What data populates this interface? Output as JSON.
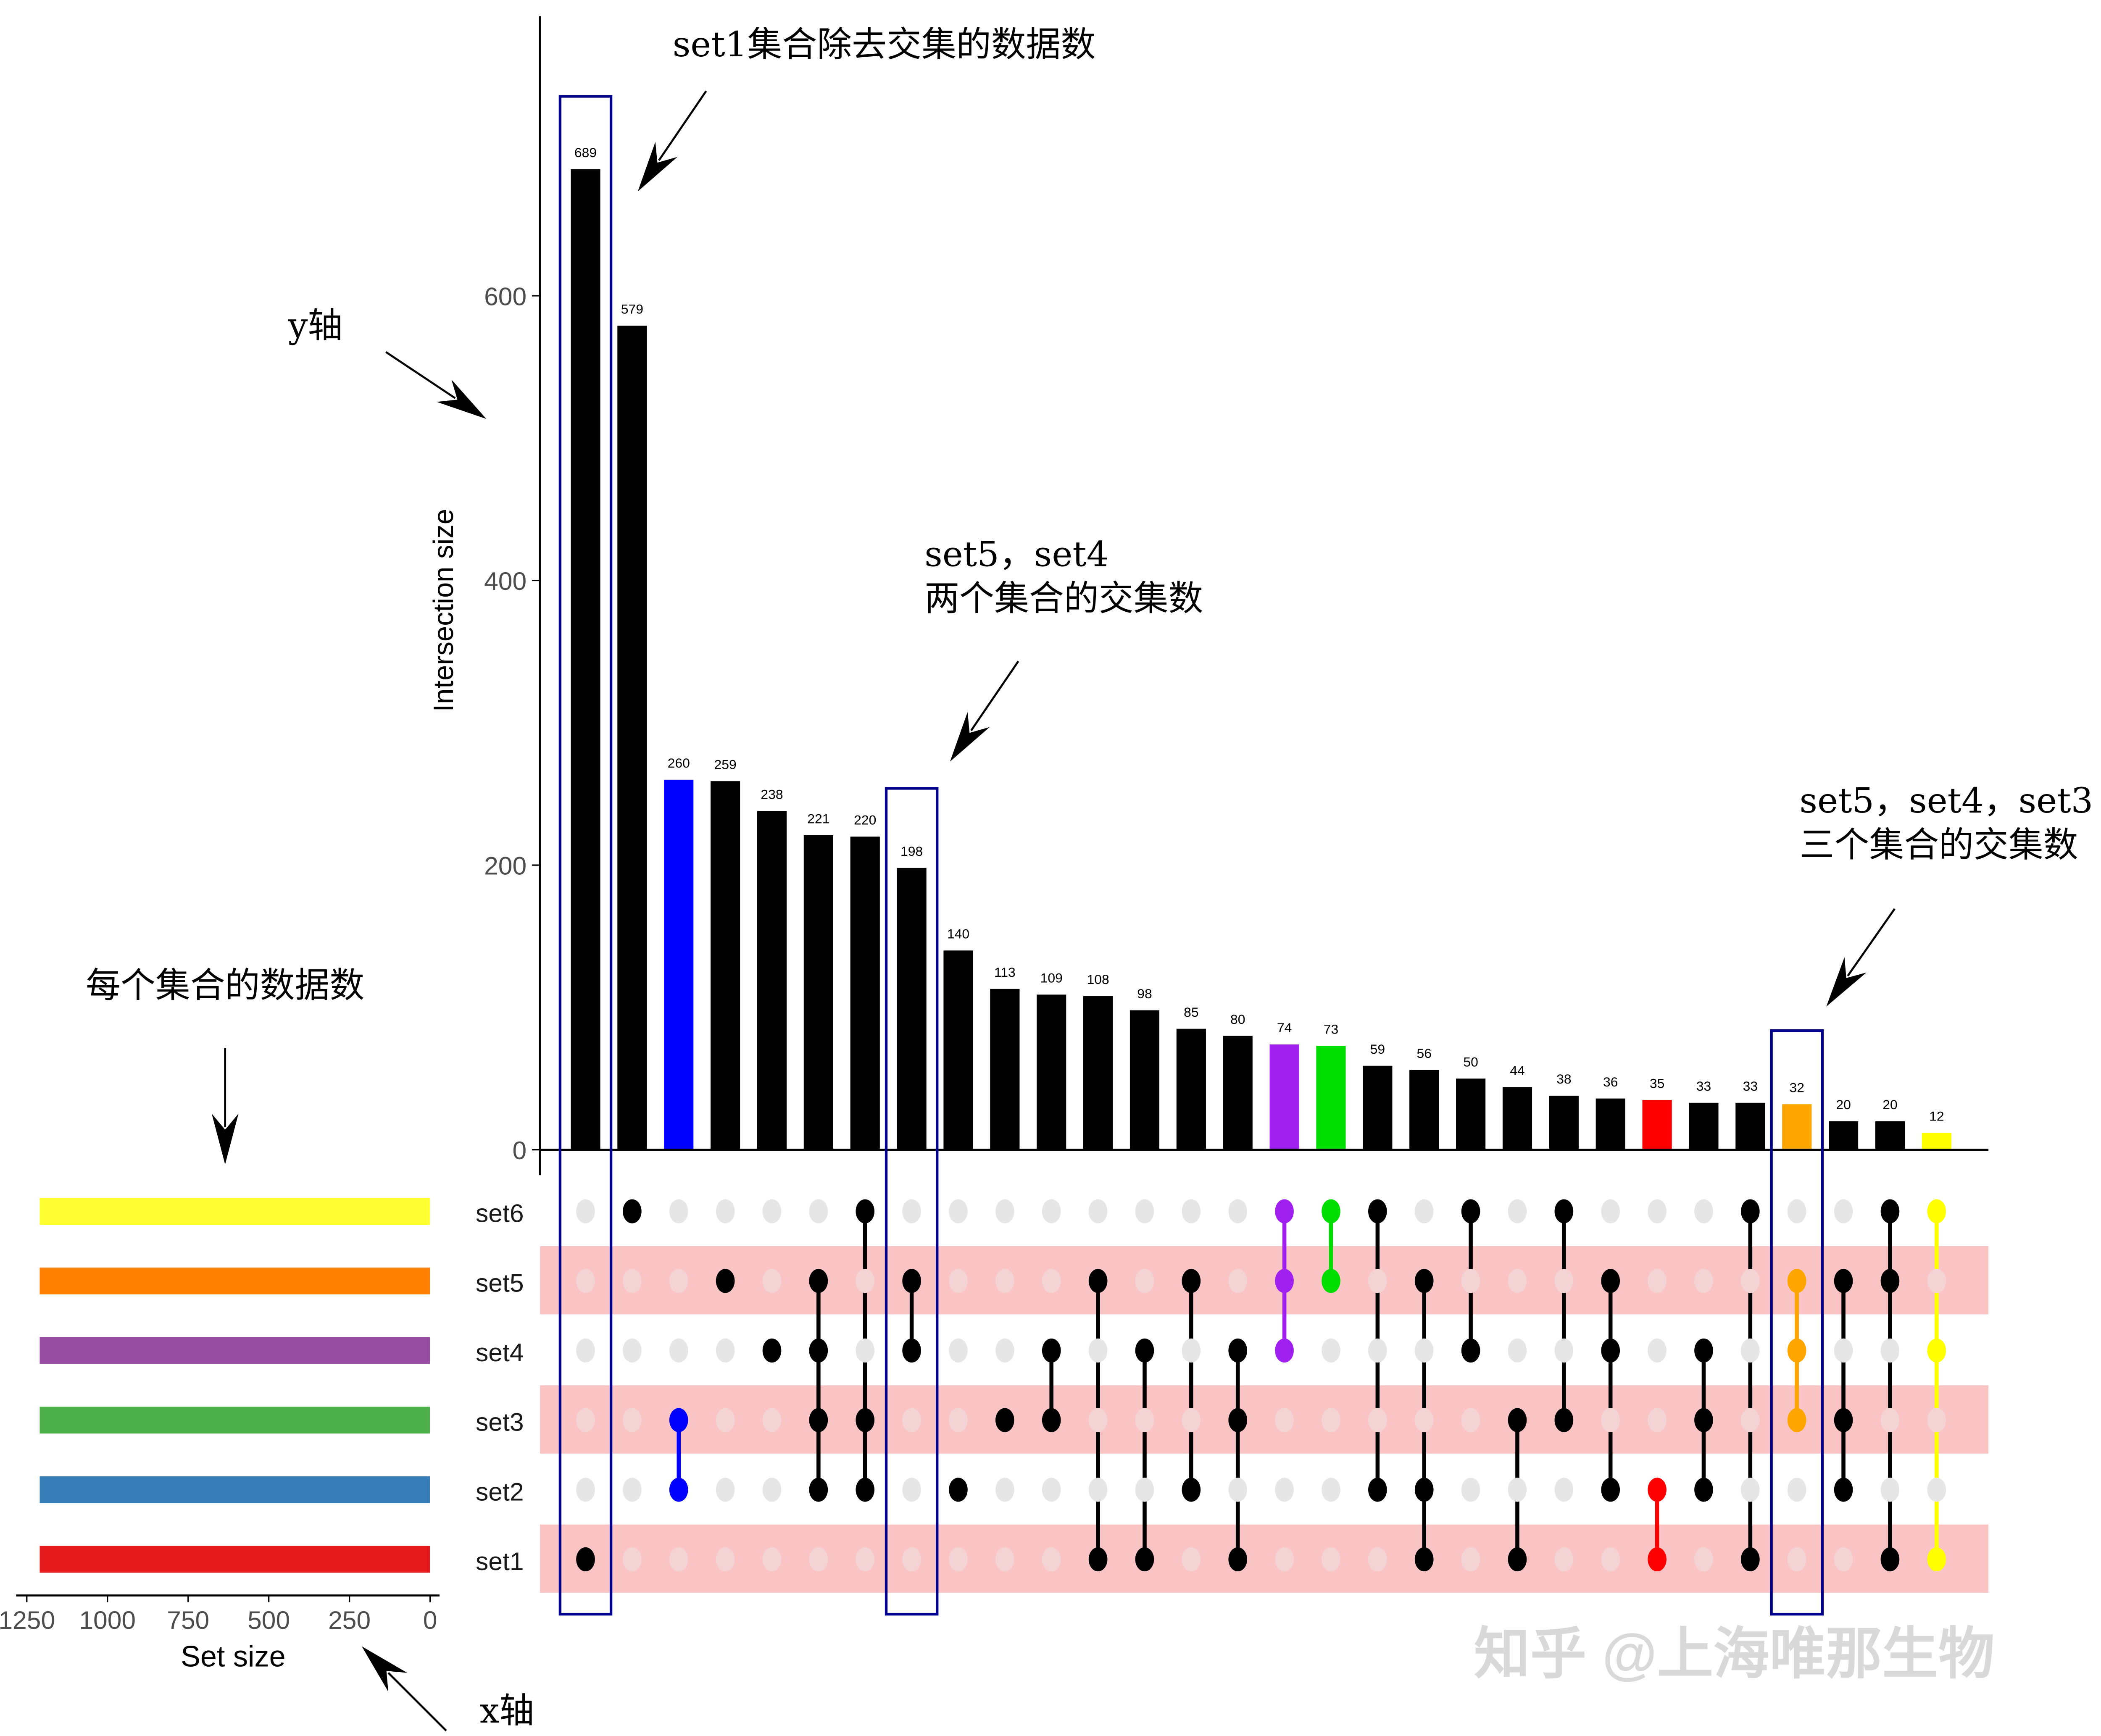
{
  "chart_data": {
    "type": "upset",
    "ylabel": "Intersection size",
    "yticks": [
      0,
      200,
      400,
      600
    ],
    "ylim": [
      0,
      760
    ],
    "set_size_label": "Set size",
    "set_size_ticks": [
      1250,
      1000,
      750,
      500,
      250,
      0
    ],
    "sets": [
      {
        "name": "set6",
        "size": 1210,
        "color": "#FFFF33"
      },
      {
        "name": "set5",
        "size": 1210,
        "color": "#FF7F00"
      },
      {
        "name": "set4",
        "size": 1210,
        "color": "#984EA3"
      },
      {
        "name": "set3",
        "size": 1210,
        "color": "#4DAF4A"
      },
      {
        "name": "set2",
        "size": 1210,
        "color": "#377EB8"
      },
      {
        "name": "set1",
        "size": 1210,
        "color": "#E41A1C"
      }
    ],
    "intersections": [
      {
        "value": 689,
        "sets": [
          "set1"
        ],
        "color": "#000000"
      },
      {
        "value": 579,
        "sets": [
          "set6"
        ],
        "color": "#000000"
      },
      {
        "value": 260,
        "sets": [
          "set3",
          "set2"
        ],
        "color": "#0000FF"
      },
      {
        "value": 259,
        "sets": [
          "set5"
        ],
        "color": "#000000"
      },
      {
        "value": 238,
        "sets": [
          "set4"
        ],
        "color": "#000000"
      },
      {
        "value": 221,
        "sets": [
          "set5",
          "set4",
          "set3",
          "set2"
        ],
        "color": "#000000"
      },
      {
        "value": 220,
        "sets": [
          "set6",
          "set3",
          "set2"
        ],
        "color": "#000000"
      },
      {
        "value": 198,
        "sets": [
          "set5",
          "set4"
        ],
        "color": "#000000"
      },
      {
        "value": 140,
        "sets": [
          "set2"
        ],
        "color": "#000000"
      },
      {
        "value": 113,
        "sets": [
          "set3"
        ],
        "color": "#000000"
      },
      {
        "value": 109,
        "sets": [
          "set4",
          "set3"
        ],
        "color": "#000000"
      },
      {
        "value": 108,
        "sets": [
          "set5",
          "set1"
        ],
        "color": "#000000"
      },
      {
        "value": 98,
        "sets": [
          "set4",
          "set1"
        ],
        "color": "#000000"
      },
      {
        "value": 85,
        "sets": [
          "set5",
          "set2"
        ],
        "color": "#000000"
      },
      {
        "value": 80,
        "sets": [
          "set4",
          "set3",
          "set1"
        ],
        "color": "#000000"
      },
      {
        "value": 74,
        "sets": [
          "set6",
          "set5",
          "set4"
        ],
        "color": "#A020F0"
      },
      {
        "value": 73,
        "sets": [
          "set6",
          "set5"
        ],
        "color": "#00DD00"
      },
      {
        "value": 59,
        "sets": [
          "set6",
          "set2"
        ],
        "color": "#000000"
      },
      {
        "value": 56,
        "sets": [
          "set5",
          "set2",
          "set1"
        ],
        "color": "#000000"
      },
      {
        "value": 50,
        "sets": [
          "set6",
          "set4"
        ],
        "color": "#000000"
      },
      {
        "value": 44,
        "sets": [
          "set3",
          "set1"
        ],
        "color": "#000000"
      },
      {
        "value": 38,
        "sets": [
          "set6",
          "set3"
        ],
        "color": "#000000"
      },
      {
        "value": 36,
        "sets": [
          "set5",
          "set4",
          "set2"
        ],
        "color": "#000000"
      },
      {
        "value": 35,
        "sets": [
          "set2",
          "set1"
        ],
        "color": "#FF0000"
      },
      {
        "value": 33,
        "sets": [
          "set4",
          "set3",
          "set2"
        ],
        "color": "#000000"
      },
      {
        "value": 33,
        "sets": [
          "set6",
          "set1"
        ],
        "color": "#000000"
      },
      {
        "value": 32,
        "sets": [
          "set5",
          "set4",
          "set3"
        ],
        "color": "#FFA500"
      },
      {
        "value": 20,
        "sets": [
          "set5",
          "set3",
          "set2"
        ],
        "color": "#000000"
      },
      {
        "value": 20,
        "sets": [
          "set6",
          "set5",
          "set1"
        ],
        "color": "#000000"
      },
      {
        "value": 12,
        "sets": [
          "set6",
          "set4",
          "set1"
        ],
        "color": "#FFFF00"
      }
    ],
    "highlighted_columns": [
      1,
      8,
      27
    ],
    "highlight_color": "#00008B",
    "stripe_color": "#FBC4C4",
    "empty_dot_color": "#E6E6E6",
    "annotations": {
      "set1_only": "set1集合除去交集的数据数",
      "y_axis": "y轴",
      "two_set_line1": "set5，set4",
      "two_set_line2": "两个集合的交集数",
      "three_set_line1": "set5，set4，set3",
      "three_set_line2": "三个集合的交集数",
      "set_sizes": "每个集合的数据数",
      "x_axis": "x轴"
    }
  },
  "watermark": "知乎 @上海唯那生物"
}
